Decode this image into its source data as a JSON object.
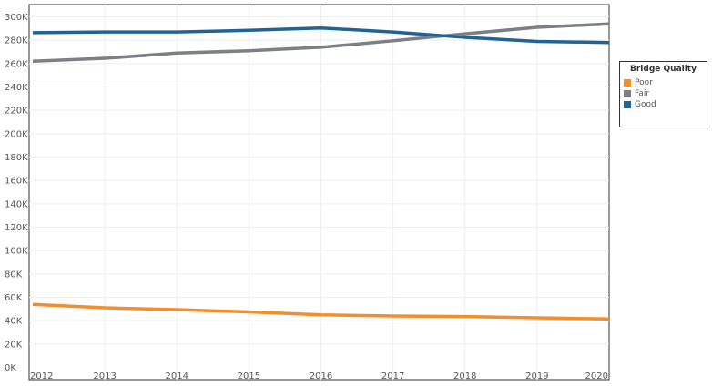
{
  "chart_data": {
    "type": "line",
    "title": "",
    "xlabel": "",
    "ylabel": "",
    "x": [
      "2012",
      "2013",
      "2014",
      "2015",
      "2016",
      "2017",
      "2018",
      "2019",
      "2020"
    ],
    "ylim": [
      0,
      300000
    ],
    "yticks": [
      0,
      20000,
      40000,
      60000,
      80000,
      100000,
      120000,
      140000,
      160000,
      180000,
      200000,
      220000,
      240000,
      260000,
      280000,
      300000
    ],
    "ytick_labels": [
      "0K",
      "20K",
      "40K",
      "60K",
      "80K",
      "100K",
      "120K",
      "140K",
      "160K",
      "180K",
      "200K",
      "220K",
      "240K",
      "260K",
      "280K",
      "300K"
    ],
    "grid": true,
    "legend": {
      "title": "Bridge Quality",
      "placement": "right"
    },
    "series": [
      {
        "name": "Poor",
        "color": "#f28e2b",
        "values": [
          54000,
          51000,
          49500,
          47500,
          45000,
          44000,
          43500,
          42500,
          41500
        ]
      },
      {
        "name": "Fair",
        "color": "#7c7f85",
        "values": [
          262000,
          264500,
          269000,
          271000,
          274000,
          279500,
          285500,
          291000,
          294000
        ]
      },
      {
        "name": "Good",
        "color": "#1f6497",
        "values": [
          286500,
          287000,
          287000,
          288500,
          290500,
          287000,
          282500,
          279000,
          278000
        ]
      }
    ]
  }
}
